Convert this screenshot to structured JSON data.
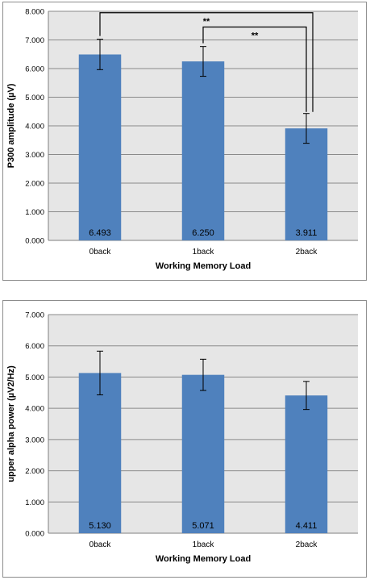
{
  "chart_data": [
    {
      "type": "bar",
      "categories": [
        "0back",
        "1back",
        "2back"
      ],
      "values": [
        6.493,
        6.25,
        3.911
      ],
      "data_labels": [
        "6.493",
        "6.250",
        "3.911"
      ],
      "error_bar_half_width": [
        0.53,
        0.52,
        0.52
      ],
      "xlabel": "Working Memory Load",
      "ylabel": "P300 amplitude (µV)",
      "ylim": [
        0,
        8
      ],
      "yticks": [
        "0.000",
        "1.000",
        "2.000",
        "3.000",
        "4.000",
        "5.000",
        "6.000",
        "7.000",
        "8.000"
      ],
      "grid": true,
      "bar_color": "#4f81bd",
      "plot_background": "#e6e6e6",
      "significance": [
        {
          "from": "0back",
          "to": "2back",
          "label": "**"
        },
        {
          "from": "1back",
          "to": "2back",
          "label": "**"
        }
      ]
    },
    {
      "type": "bar",
      "categories": [
        "0back",
        "1back",
        "2back"
      ],
      "values": [
        5.13,
        5.071,
        4.411
      ],
      "data_labels": [
        "5.130",
        "5.071",
        "4.411"
      ],
      "error_bar_half_width": [
        0.7,
        0.5,
        0.45
      ],
      "xlabel": "Working Memory Load",
      "ylabel": "upper alpha power (µV2/Hz)",
      "ylim": [
        0,
        7
      ],
      "yticks": [
        "0.000",
        "1.000",
        "2.000",
        "3.000",
        "4.000",
        "5.000",
        "6.000",
        "7.000"
      ],
      "grid": true,
      "bar_color": "#4f81bd",
      "plot_background": "#e6e6e6"
    }
  ]
}
